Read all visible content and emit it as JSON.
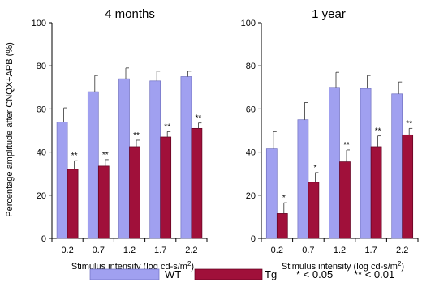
{
  "colors": {
    "wt": "#a0a0f0",
    "tg": "#a0103a",
    "wt_stroke": "#7070c0",
    "tg_stroke": "#600020"
  },
  "ylabel": "Percentage amplitude after CNQX+APB (%)",
  "legend": {
    "wt": "WT",
    "tg": "Tg",
    "p05": "* < 0.05",
    "p01": "** < 0.01"
  },
  "chart_data": [
    {
      "type": "bar",
      "title": "4 months",
      "xlabel": "Stimulus intensity (log cd-s/m",
      "xlabel_sup": "2",
      "xlabel_end": ")",
      "categories": [
        "0.2",
        "0.7",
        "1.2",
        "1.7",
        "2.2"
      ],
      "ylim": [
        0,
        100
      ],
      "yticks": [
        "0",
        "20",
        "40",
        "60",
        "80",
        "100"
      ],
      "series": [
        {
          "name": "WT",
          "values": [
            54,
            68,
            74,
            73,
            75
          ],
          "errors": [
            6.5,
            7.5,
            5,
            4.5,
            2.5
          ]
        },
        {
          "name": "Tg",
          "values": [
            32,
            33.5,
            42.5,
            47,
            51
          ],
          "errors": [
            4,
            3,
            3,
            2.5,
            2.5
          ]
        }
      ],
      "significance": [
        "**",
        "**",
        "**",
        "**",
        "**"
      ]
    },
    {
      "type": "bar",
      "title": "1 year",
      "xlabel": "Stimulus intensity (log cd-s/m",
      "xlabel_sup": "2",
      "xlabel_end": ")",
      "categories": [
        "0.2",
        "0.7",
        "1.2",
        "1.7",
        "2.2"
      ],
      "ylim": [
        0,
        100
      ],
      "yticks": [
        "0",
        "20",
        "40",
        "60",
        "80",
        "100"
      ],
      "series": [
        {
          "name": "WT",
          "values": [
            41.5,
            55,
            70,
            69.5,
            67
          ],
          "errors": [
            8,
            8,
            7,
            6,
            5.5
          ]
        },
        {
          "name": "Tg",
          "values": [
            11.5,
            26,
            35.5,
            42.5,
            48
          ],
          "errors": [
            5,
            4.5,
            5.5,
            5,
            3
          ]
        }
      ],
      "significance": [
        "*",
        "*",
        "**",
        "**",
        "**"
      ]
    }
  ]
}
